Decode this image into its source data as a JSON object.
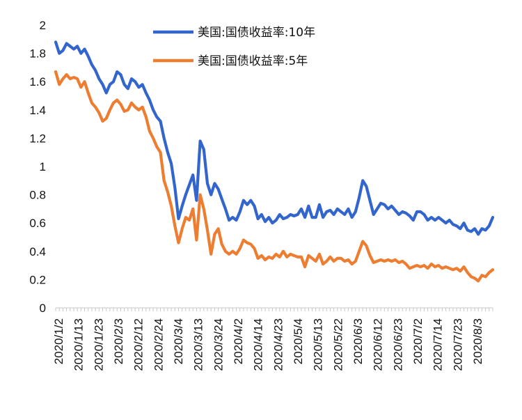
{
  "chart_data": {
    "type": "line",
    "title": "",
    "xlabel": "",
    "ylabel": "",
    "ylim": [
      0,
      2
    ],
    "y_ticks": [
      "0",
      "0.2",
      "0.4",
      "0.6",
      "0.8",
      "1",
      "1.2",
      "1.4",
      "1.6",
      "1.8",
      "2"
    ],
    "x_tick_labels": [
      "2020/1/2",
      "2020/1/13",
      "2020/1/23",
      "2020/2/3",
      "2020/2/12",
      "2020/2/24",
      "2020/3/4",
      "2020/3/13",
      "2020/3/24",
      "2020/4/2",
      "2020/4/14",
      "2020/4/23",
      "2020/5/4",
      "2020/5/13",
      "2020/5/22",
      "2020/6/3",
      "2020/6/12",
      "2020/6/23",
      "2020/7/2",
      "2020/7/14",
      "2020/7/23",
      "2020/8/3"
    ],
    "legend_position": "top-right",
    "grid": false,
    "series": [
      {
        "name": "美国:国债收益率:10年",
        "color": "#3366CC",
        "values": [
          1.88,
          1.8,
          1.82,
          1.87,
          1.85,
          1.83,
          1.85,
          1.8,
          1.83,
          1.78,
          1.72,
          1.68,
          1.62,
          1.58,
          1.52,
          1.58,
          1.6,
          1.67,
          1.65,
          1.58,
          1.55,
          1.62,
          1.6,
          1.56,
          1.58,
          1.52,
          1.47,
          1.4,
          1.35,
          1.32,
          1.2,
          1.1,
          1.02,
          0.85,
          0.63,
          0.72,
          0.8,
          0.87,
          0.94,
          0.76,
          1.18,
          1.12,
          0.88,
          0.8,
          0.88,
          0.84,
          0.77,
          0.7,
          0.62,
          0.64,
          0.62,
          0.68,
          0.76,
          0.73,
          0.76,
          0.72,
          0.63,
          0.66,
          0.61,
          0.64,
          0.6,
          0.62,
          0.66,
          0.63,
          0.64,
          0.66,
          0.65,
          0.66,
          0.7,
          0.64,
          0.72,
          0.64,
          0.64,
          0.73,
          0.64,
          0.68,
          0.69,
          0.66,
          0.7,
          0.68,
          0.66,
          0.7,
          0.64,
          0.68,
          0.78,
          0.9,
          0.86,
          0.76,
          0.66,
          0.7,
          0.74,
          0.73,
          0.7,
          0.72,
          0.69,
          0.66,
          0.68,
          0.67,
          0.65,
          0.62,
          0.68,
          0.68,
          0.66,
          0.62,
          0.64,
          0.62,
          0.64,
          0.62,
          0.6,
          0.62,
          0.59,
          0.58,
          0.56,
          0.6,
          0.55,
          0.54,
          0.56,
          0.52,
          0.56,
          0.55,
          0.58,
          0.64
        ]
      },
      {
        "name": "美国:国债收益率:5年",
        "color": "#ED7D31",
        "values": [
          1.67,
          1.58,
          1.62,
          1.65,
          1.62,
          1.63,
          1.62,
          1.56,
          1.6,
          1.52,
          1.45,
          1.42,
          1.38,
          1.32,
          1.34,
          1.4,
          1.45,
          1.47,
          1.44,
          1.39,
          1.4,
          1.45,
          1.42,
          1.4,
          1.42,
          1.35,
          1.25,
          1.2,
          1.14,
          1.1,
          0.9,
          0.82,
          0.72,
          0.58,
          0.46,
          0.56,
          0.64,
          0.62,
          0.7,
          0.48,
          0.8,
          0.7,
          0.55,
          0.38,
          0.52,
          0.56,
          0.45,
          0.4,
          0.38,
          0.4,
          0.38,
          0.42,
          0.48,
          0.46,
          0.45,
          0.42,
          0.35,
          0.37,
          0.34,
          0.36,
          0.35,
          0.38,
          0.36,
          0.4,
          0.36,
          0.38,
          0.37,
          0.36,
          0.36,
          0.29,
          0.37,
          0.35,
          0.33,
          0.38,
          0.31,
          0.33,
          0.36,
          0.33,
          0.35,
          0.35,
          0.33,
          0.34,
          0.31,
          0.33,
          0.4,
          0.47,
          0.44,
          0.37,
          0.32,
          0.33,
          0.34,
          0.33,
          0.34,
          0.33,
          0.34,
          0.32,
          0.33,
          0.31,
          0.28,
          0.29,
          0.3,
          0.29,
          0.3,
          0.28,
          0.31,
          0.29,
          0.3,
          0.28,
          0.29,
          0.28,
          0.27,
          0.28,
          0.26,
          0.29,
          0.25,
          0.22,
          0.21,
          0.19,
          0.23,
          0.22,
          0.25,
          0.27
        ]
      }
    ]
  }
}
